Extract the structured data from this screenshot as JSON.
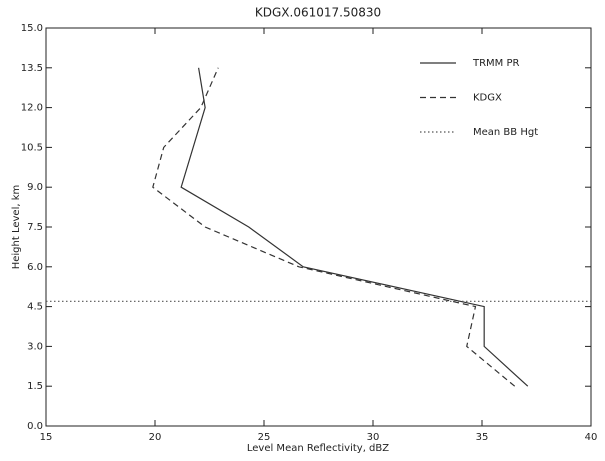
{
  "chart_data": {
    "type": "line",
    "title": "KDGX.061017.50830",
    "x_label": "Level Mean Reflectivity, dBZ",
    "y_label": "Height Level, km",
    "xlim": [
      15,
      40
    ],
    "xticks": [
      15,
      20,
      25,
      30,
      35,
      40
    ],
    "ylim": [
      0,
      15
    ],
    "yticks": [
      {
        "value": 0,
        "label": "0.0"
      },
      {
        "value": 1.5,
        "label": "1.5"
      },
      {
        "value": 3,
        "label": "3.0"
      },
      {
        "value": 4.5,
        "label": "4.5"
      },
      {
        "value": 6,
        "label": "6.0"
      },
      {
        "value": 7.5,
        "label": "7.5"
      },
      {
        "value": 9,
        "label": "9.0"
      },
      {
        "value": 10.5,
        "label": "10.5"
      },
      {
        "value": 12,
        "label": "12.0"
      },
      {
        "value": 13.5,
        "label": "13.5"
      },
      {
        "value": 15,
        "label": "15.0"
      }
    ],
    "legend": "upper right",
    "series": [
      {
        "name": "TRMM PR",
        "color": "#333333",
        "style": "solid",
        "x": [
          37.1,
          35.1,
          35.1,
          26.8,
          24.3,
          21.2,
          22.3,
          22.0
        ],
        "values": [
          1.5,
          3,
          4.5,
          6,
          7.5,
          9,
          12,
          13.5
        ]
      },
      {
        "name": "KDGX",
        "color": "#333333",
        "style": "dashed",
        "x": [
          36.5,
          34.3,
          34.7,
          26.6,
          22.3,
          19.9,
          20.4,
          22.1,
          22.9
        ],
        "values": [
          1.5,
          3,
          4.5,
          6,
          7.5,
          9,
          10.5,
          12,
          13.5
        ]
      },
      {
        "name": "Mean BB Hgt",
        "color": "#555555",
        "style": "dotted",
        "values": [
          4.7
        ]
      }
    ]
  }
}
